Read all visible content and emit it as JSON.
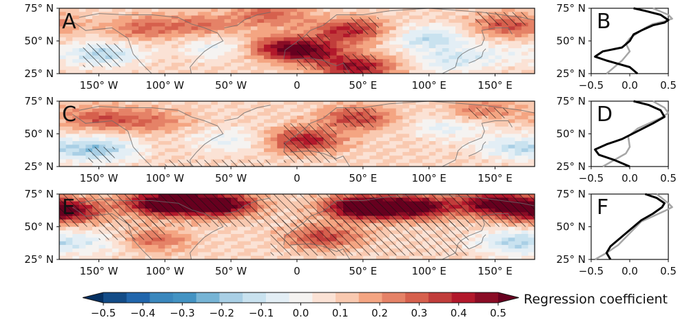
{
  "chart_data": {
    "type": "heatmap",
    "colorbar": {
      "label": "Regression coefficient",
      "ticks": [
        "−0.5",
        "−0.4",
        "−0.3",
        "−0.2",
        "−0.1",
        "0.0",
        "0.1",
        "0.2",
        "0.3",
        "0.4",
        "0.5"
      ],
      "range": [
        -0.5,
        0.5
      ],
      "extend": "both",
      "colors": [
        "#053061",
        "#134c87",
        "#2166ac",
        "#3a87bd",
        "#4393c3",
        "#76b4d5",
        "#a9cfe5",
        "#c9e2ef",
        "#e3eef5",
        "#f5f3f1",
        "#fbe2d5",
        "#f9c9b0",
        "#f4a582",
        "#e58267",
        "#d6604d",
        "#c13d3b",
        "#b2182b",
        "#8a0c25",
        "#67001f"
      ]
    },
    "maps": [
      {
        "panel": "A",
        "lat_ticks": [
          "75° N",
          "50° N",
          "25° N"
        ],
        "lon_ticks": [
          "150° W",
          "100° W",
          "50° W",
          "0",
          "50° E",
          "100° E",
          "150° E"
        ],
        "lon_range": [
          -180,
          180
        ],
        "lat_range": [
          25,
          75
        ],
        "blobs": [
          {
            "lon": -148,
            "lat": 40,
            "v": -0.22
          },
          {
            "lon": -60,
            "lat": 45,
            "v": -0.12
          },
          {
            "lon": -115,
            "lat": 60,
            "v": 0.18
          },
          {
            "lon": -70,
            "lat": 62,
            "v": 0.15
          },
          {
            "lon": -12,
            "lat": 45,
            "v": 0.28
          },
          {
            "lon": 10,
            "lat": 42,
            "v": 0.3
          },
          {
            "lon": 40,
            "lat": 58,
            "v": 0.3
          },
          {
            "lon": 45,
            "lat": 30,
            "v": 0.35
          },
          {
            "lon": 100,
            "lat": 52,
            "v": -0.2
          },
          {
            "lon": 115,
            "lat": 35,
            "v": -0.15
          },
          {
            "lon": 160,
            "lat": 62,
            "v": 0.22
          },
          {
            "lon": -20,
            "lat": 70,
            "v": 0.2
          },
          {
            "lon": 150,
            "lat": 40,
            "v": -0.08
          }
        ],
        "hatch": [
          {
            "lon0": -162,
            "lon1": -132,
            "lat0": 30,
            "lat1": 48
          },
          {
            "lon0": 0,
            "lon1": 25,
            "lat0": 28,
            "lat1": 55
          },
          {
            "lon0": 35,
            "lon1": 60,
            "lat0": 25,
            "lat1": 40
          },
          {
            "lon0": 38,
            "lon1": 62,
            "lat0": 55,
            "lat1": 68
          },
          {
            "lon0": 135,
            "lon1": 175,
            "lat0": 62,
            "lat1": 72
          }
        ]
      },
      {
        "panel": "C",
        "lat_ticks": [
          "75° N",
          "50° N",
          "25° N"
        ],
        "lon_ticks": [
          "150° W",
          "100° W",
          "50° W",
          "0",
          "50° E",
          "100° E",
          "150° E"
        ],
        "lon_range": [
          -180,
          180
        ],
        "lat_range": [
          25,
          75
        ],
        "blobs": [
          {
            "lon": -150,
            "lat": 38,
            "v": -0.25
          },
          {
            "lon": -50,
            "lat": 45,
            "v": -0.12
          },
          {
            "lon": 115,
            "lat": 55,
            "v": -0.12
          },
          {
            "lon": 165,
            "lat": 40,
            "v": -0.18
          },
          {
            "lon": 5,
            "lat": 45,
            "v": 0.32
          },
          {
            "lon": 45,
            "lat": 62,
            "v": 0.25
          },
          {
            "lon": -110,
            "lat": 60,
            "v": 0.15
          },
          {
            "lon": -150,
            "lat": 62,
            "v": 0.2
          },
          {
            "lon": 140,
            "lat": 68,
            "v": 0.15
          }
        ],
        "hatch": [
          {
            "lon0": -158,
            "lon1": -138,
            "lat0": 28,
            "lat1": 40
          },
          {
            "lon0": -10,
            "lon1": 30,
            "lat0": 28,
            "lat1": 58
          },
          {
            "lon0": 35,
            "lon1": 60,
            "lat0": 55,
            "lat1": 70
          },
          {
            "lon0": -100,
            "lon1": -20,
            "lat0": 25,
            "lat1": 30
          },
          {
            "lon0": 130,
            "lon1": 160,
            "lat0": 62,
            "lat1": 70
          }
        ]
      },
      {
        "panel": "E",
        "lat_ticks": [
          "75° N",
          "50° N",
          "25° N"
        ],
        "lon_ticks": [
          "150° W",
          "100° W",
          "50° W",
          "0",
          "50° E",
          "100° E",
          "150° E"
        ],
        "lon_range": [
          -180,
          180
        ],
        "lat_range": [
          25,
          75
        ],
        "blobs": [
          {
            "lon": -100,
            "lat": 68,
            "v": 0.55
          },
          {
            "lon": -60,
            "lat": 67,
            "v": 0.5
          },
          {
            "lon": 50,
            "lat": 65,
            "v": 0.55
          },
          {
            "lon": 90,
            "lat": 65,
            "v": 0.45
          },
          {
            "lon": 150,
            "lat": 68,
            "v": 0.45
          },
          {
            "lon": -175,
            "lat": 62,
            "v": 0.4
          },
          {
            "lon": -150,
            "lat": 38,
            "v": -0.12
          },
          {
            "lon": 165,
            "lat": 38,
            "v": -0.22
          },
          {
            "lon": 20,
            "lat": 42,
            "v": 0.25
          },
          {
            "lon": -110,
            "lat": 40,
            "v": 0.18
          }
        ],
        "hatch": [
          {
            "lon0": -180,
            "lon1": 180,
            "lat0": 50,
            "lat1": 75
          },
          {
            "lon0": -20,
            "lon1": 130,
            "lat0": 28,
            "lat1": 55
          },
          {
            "lon0": -150,
            "lon1": -100,
            "lat0": 40,
            "lat1": 55
          }
        ]
      }
    ],
    "profiles": [
      {
        "panel": "B",
        "xlim": [
          -0.5,
          0.5
        ],
        "ylim": [
          25,
          75
        ],
        "x_ticks": [
          "−0.5",
          "0.0",
          "0.5"
        ],
        "y_ticks": [
          "75° N",
          "50° N",
          "25° N"
        ],
        "black": {
          "x": [
            0.1,
            0.0,
            -0.3,
            -0.45,
            -0.35,
            -0.1,
            0.0,
            0.05,
            0.15,
            0.3,
            0.45,
            0.5,
            0.4,
            0.2,
            0.05
          ],
          "y": [
            25,
            30,
            35,
            38,
            42,
            45,
            50,
            55,
            58,
            62,
            64,
            66,
            70,
            73,
            75
          ]
        },
        "gray": {
          "x": [
            -0.3,
            -0.2,
            -0.1,
            0.0,
            -0.05,
            0.0,
            0.1,
            0.2,
            0.3,
            0.45,
            0.55,
            0.5,
            0.3
          ],
          "y": [
            25,
            30,
            35,
            42,
            48,
            52,
            56,
            60,
            63,
            65,
            67,
            70,
            75
          ]
        }
      },
      {
        "panel": "D",
        "xlim": [
          -0.5,
          0.5
        ],
        "ylim": [
          25,
          75
        ],
        "x_ticks": [
          "−0.5",
          "0.0",
          "0.5"
        ],
        "y_ticks": [
          "75° N",
          "50° N",
          "25° N"
        ],
        "black": {
          "x": [
            0.0,
            -0.2,
            -0.4,
            -0.45,
            -0.3,
            -0.1,
            0.1,
            0.3,
            0.45,
            0.4,
            0.25,
            0.05
          ],
          "y": [
            25,
            30,
            34,
            38,
            42,
            46,
            52,
            58,
            63,
            68,
            72,
            75
          ]
        },
        "gray": {
          "x": [
            -0.35,
            -0.2,
            -0.05,
            0.0,
            -0.02,
            0.1,
            0.25,
            0.4,
            0.5,
            0.45,
            0.3
          ],
          "y": [
            25,
            30,
            35,
            40,
            48,
            54,
            58,
            62,
            66,
            70,
            75
          ]
        }
      },
      {
        "panel": "F",
        "xlim": [
          -0.5,
          0.5
        ],
        "ylim": [
          25,
          75
        ],
        "x_ticks": [
          "−0.5",
          "0.0",
          "0.5"
        ],
        "y_ticks": [
          "75° N",
          "50° N",
          "25° N"
        ],
        "black": {
          "x": [
            -0.25,
            -0.3,
            -0.25,
            -0.15,
            -0.05,
            0.05,
            0.15,
            0.3,
            0.42,
            0.45,
            0.35,
            0.2
          ],
          "y": [
            25,
            30,
            35,
            40,
            45,
            50,
            55,
            60,
            65,
            68,
            72,
            75
          ]
        },
        "gray": {
          "x": [
            -0.45,
            -0.3,
            -0.15,
            -0.05,
            0.05,
            0.15,
            0.3,
            0.45,
            0.55,
            0.5,
            0.35
          ],
          "y": [
            25,
            30,
            36,
            42,
            48,
            54,
            58,
            62,
            65,
            68,
            75
          ]
        }
      }
    ]
  }
}
